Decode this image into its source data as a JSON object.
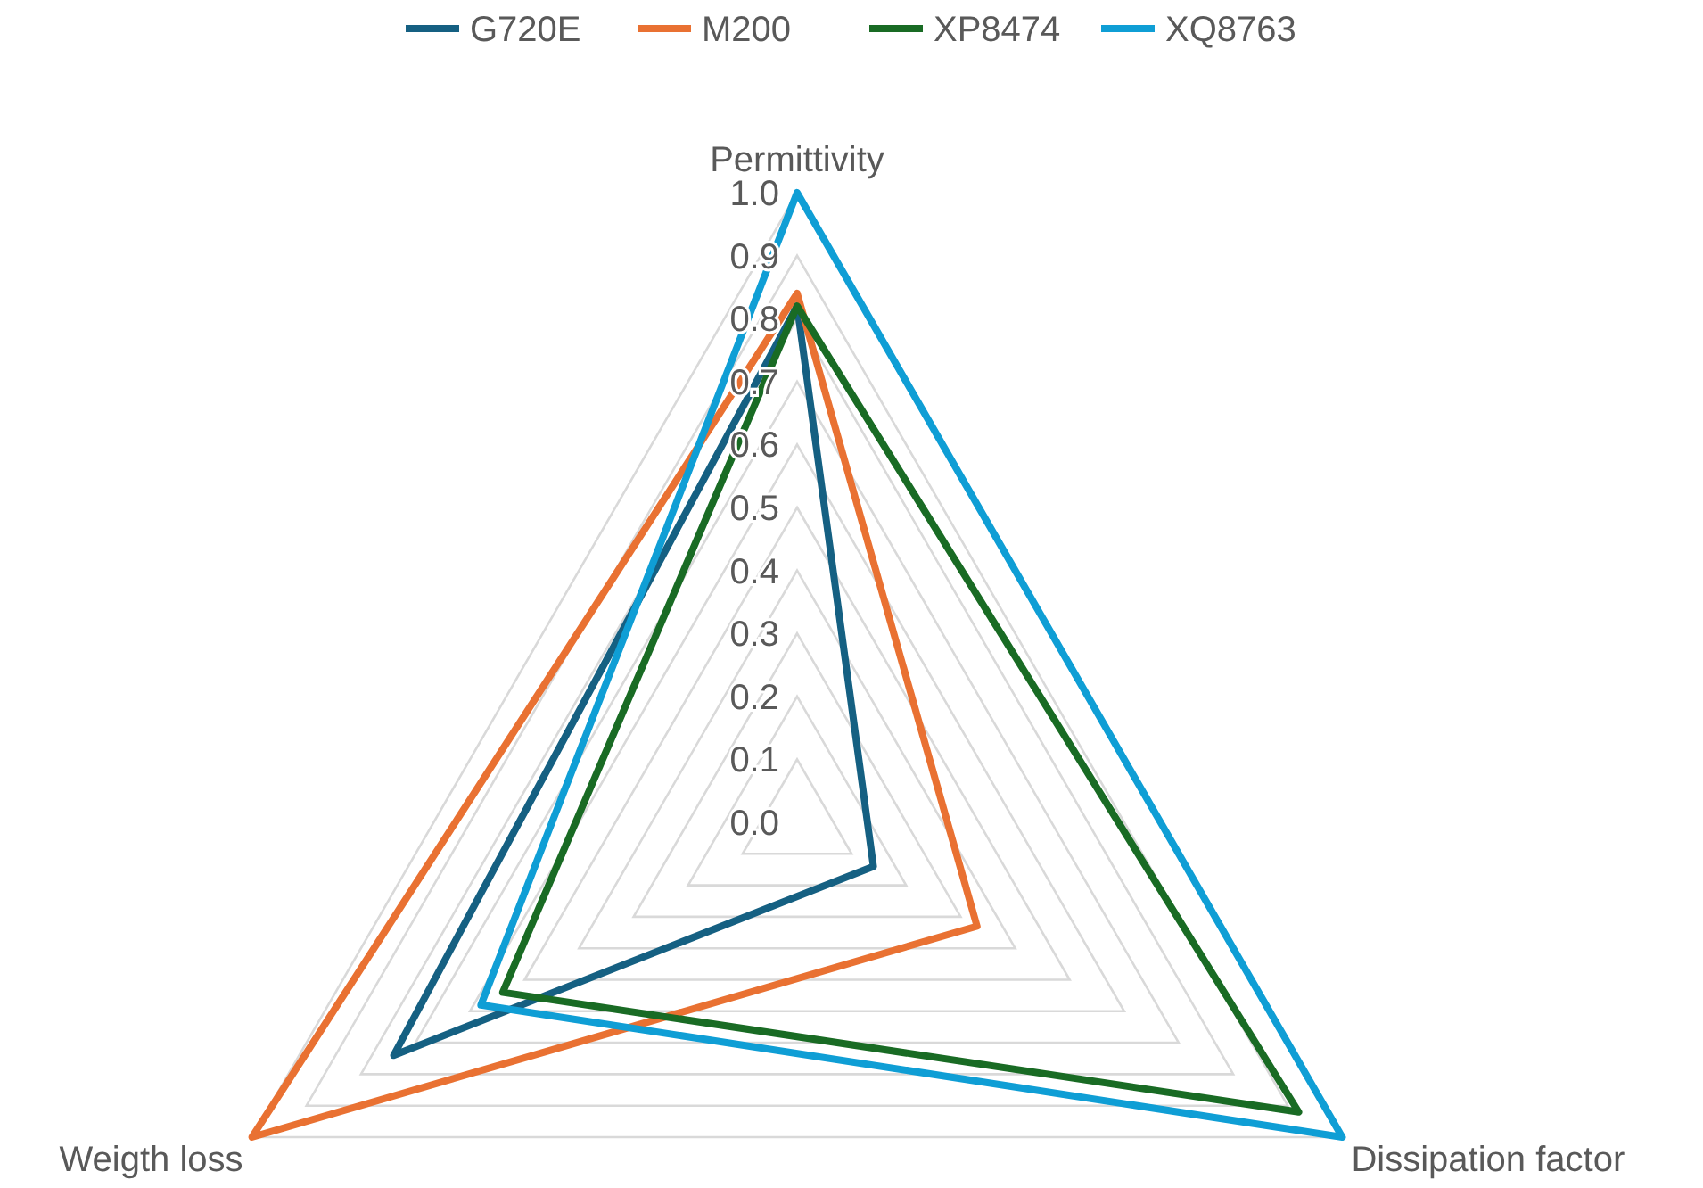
{
  "chart_data": {
    "type": "radar",
    "categories": [
      "Permittivity",
      "Dissipation factor",
      "Weigth loss"
    ],
    "series": [
      {
        "name": "G720E",
        "color": "#156082",
        "values": [
          0.82,
          0.14,
          0.74
        ]
      },
      {
        "name": "M200",
        "color": "#e97132",
        "values": [
          0.84,
          0.33,
          1.0
        ]
      },
      {
        "name": "XP8474",
        "color": "#196b24",
        "values": [
          0.82,
          0.92,
          0.54
        ]
      },
      {
        "name": "XQ8763",
        "color": "#0f9ed5",
        "values": [
          1.0,
          1.0,
          0.58
        ]
      }
    ],
    "ylim": [
      0,
      1
    ],
    "yticks": [
      {
        "value": 0,
        "label": "0.0"
      },
      {
        "value": 0.1,
        "label": "0.1"
      },
      {
        "value": 0.2,
        "label": "0.2"
      },
      {
        "value": 0.3,
        "label": "0.3"
      },
      {
        "value": 0.4,
        "label": "0.4"
      },
      {
        "value": 0.5,
        "label": "0.5"
      },
      {
        "value": 0.6,
        "label": "0.6"
      },
      {
        "value": 0.7,
        "label": "0.7"
      },
      {
        "value": 0.8,
        "label": "0.8"
      },
      {
        "value": 0.9,
        "label": "0.9"
      },
      {
        "value": 1,
        "label": "1.0"
      }
    ],
    "grid": true,
    "legend": "top"
  }
}
